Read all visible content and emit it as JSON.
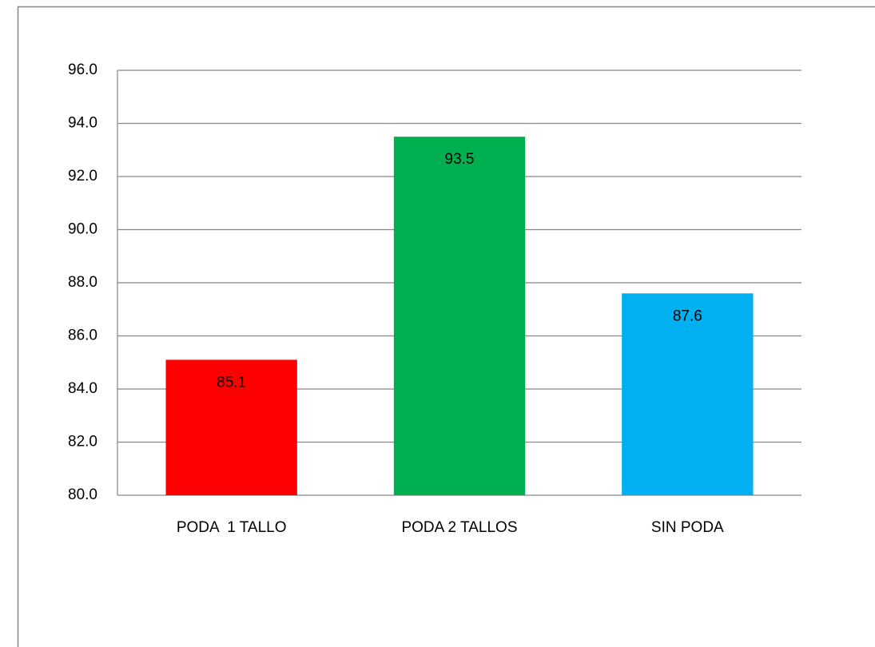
{
  "chart_data": {
    "type": "bar",
    "categories": [
      "PODA  1 TALLO",
      "PODA 2 TALLOS",
      "SIN PODA"
    ],
    "values": [
      85.1,
      93.5,
      87.6
    ],
    "colors": [
      "#ff0000",
      "#00b050",
      "#00b0f0"
    ],
    "ylim": [
      80,
      96
    ],
    "yticks": [
      {
        "value": 80,
        "label": "80.0"
      },
      {
        "value": 82,
        "label": "82.0"
      },
      {
        "value": 84,
        "label": "84.0"
      },
      {
        "value": 86,
        "label": "86.0"
      },
      {
        "value": 88,
        "label": "88.0"
      },
      {
        "value": 90,
        "label": "90.0"
      },
      {
        "value": 92,
        "label": "92.0"
      },
      {
        "value": 94,
        "label": "94.0"
      },
      {
        "value": 96,
        "label": "96.0"
      }
    ],
    "grid": true
  }
}
